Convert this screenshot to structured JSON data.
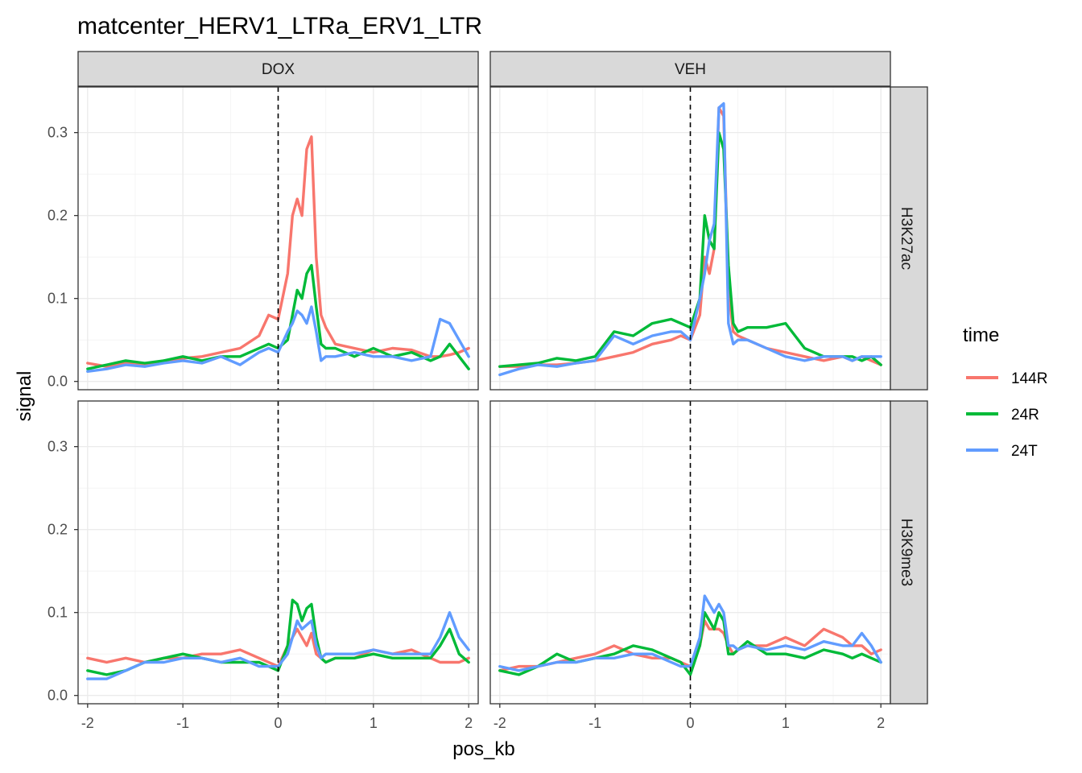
{
  "chart_data": {
    "type": "line",
    "title": "matcenter_HERV1_LTRa_ERV1_LTR",
    "xlabel": "pos_kb",
    "ylabel": "signal",
    "xlim": [
      -2.1,
      2.1
    ],
    "ylim": [
      -0.01,
      0.355
    ],
    "xticks": [
      "-2",
      "-1",
      "0",
      "1",
      "2"
    ],
    "yticks": [
      "0.0",
      "0.1",
      "0.2",
      "0.3"
    ],
    "vline_x": 0,
    "grid": true,
    "legend": {
      "title": "time",
      "placement": "right"
    },
    "columns": [
      "DOX",
      "VEH"
    ],
    "rows": [
      "H3K27ac",
      "H3K9me3"
    ],
    "colors": {
      "144R": "#F8766D",
      "24R": "#00BA38",
      "24T": "#619CFF"
    },
    "x": [
      -2.0,
      -1.8,
      -1.6,
      -1.4,
      -1.2,
      -1.0,
      -0.8,
      -0.6,
      -0.4,
      -0.2,
      -0.1,
      0.0,
      0.1,
      0.15,
      0.2,
      0.25,
      0.3,
      0.35,
      0.4,
      0.45,
      0.5,
      0.6,
      0.8,
      1.0,
      1.2,
      1.4,
      1.6,
      1.7,
      1.8,
      1.9,
      2.0
    ],
    "panels": [
      {
        "col": "DOX",
        "row": "H3K27ac",
        "series": [
          {
            "name": "144R",
            "values": [
              0.022,
              0.018,
              0.022,
              0.02,
              0.025,
              0.028,
              0.03,
              0.035,
              0.04,
              0.055,
              0.08,
              0.075,
              0.13,
              0.2,
              0.22,
              0.2,
              0.28,
              0.295,
              0.15,
              0.08,
              0.065,
              0.045,
              0.04,
              0.035,
              0.04,
              0.038,
              0.03,
              0.03,
              0.032,
              0.035,
              0.04
            ]
          },
          {
            "name": "24R",
            "values": [
              0.015,
              0.02,
              0.025,
              0.022,
              0.025,
              0.03,
              0.025,
              0.03,
              0.03,
              0.04,
              0.045,
              0.04,
              0.05,
              0.08,
              0.11,
              0.1,
              0.13,
              0.14,
              0.09,
              0.045,
              0.04,
              0.04,
              0.03,
              0.04,
              0.03,
              0.035,
              0.025,
              0.03,
              0.045,
              0.03,
              0.015
            ]
          },
          {
            "name": "24T",
            "values": [
              0.012,
              0.015,
              0.02,
              0.018,
              0.022,
              0.025,
              0.022,
              0.03,
              0.02,
              0.035,
              0.04,
              0.035,
              0.06,
              0.07,
              0.085,
              0.08,
              0.07,
              0.09,
              0.06,
              0.025,
              0.03,
              0.03,
              0.035,
              0.03,
              0.03,
              0.025,
              0.03,
              0.075,
              0.07,
              0.05,
              0.03
            ]
          }
        ]
      },
      {
        "col": "VEH",
        "row": "H3K27ac",
        "series": [
          {
            "name": "144R",
            "values": [
              0.018,
              0.018,
              0.02,
              0.02,
              0.022,
              0.025,
              0.03,
              0.035,
              0.045,
              0.05,
              0.055,
              0.05,
              0.08,
              0.15,
              0.13,
              0.16,
              0.33,
              0.32,
              0.11,
              0.06,
              0.055,
              0.05,
              0.04,
              0.035,
              0.03,
              0.025,
              0.03,
              0.025,
              0.03,
              0.025,
              0.02
            ]
          },
          {
            "name": "24R",
            "values": [
              0.018,
              0.02,
              0.022,
              0.028,
              0.025,
              0.03,
              0.06,
              0.055,
              0.07,
              0.075,
              0.07,
              0.065,
              0.1,
              0.2,
              0.17,
              0.16,
              0.3,
              0.28,
              0.14,
              0.07,
              0.06,
              0.065,
              0.065,
              0.07,
              0.04,
              0.03,
              0.03,
              0.03,
              0.025,
              0.03,
              0.02
            ]
          },
          {
            "name": "24T",
            "values": [
              0.008,
              0.015,
              0.02,
              0.018,
              0.022,
              0.025,
              0.055,
              0.045,
              0.055,
              0.06,
              0.06,
              0.05,
              0.1,
              0.13,
              0.17,
              0.19,
              0.33,
              0.335,
              0.07,
              0.045,
              0.05,
              0.05,
              0.04,
              0.03,
              0.025,
              0.03,
              0.03,
              0.025,
              0.03,
              0.03,
              0.03
            ]
          }
        ]
      },
      {
        "col": "DOX",
        "row": "H3K9me3",
        "series": [
          {
            "name": "144R",
            "values": [
              0.045,
              0.04,
              0.045,
              0.04,
              0.045,
              0.045,
              0.05,
              0.05,
              0.055,
              0.045,
              0.04,
              0.035,
              0.06,
              0.07,
              0.08,
              0.07,
              0.06,
              0.075,
              0.05,
              0.045,
              0.04,
              0.045,
              0.045,
              0.055,
              0.05,
              0.055,
              0.045,
              0.04,
              0.04,
              0.04,
              0.045
            ]
          },
          {
            "name": "24R",
            "values": [
              0.03,
              0.025,
              0.03,
              0.04,
              0.045,
              0.05,
              0.045,
              0.04,
              0.04,
              0.04,
              0.035,
              0.03,
              0.06,
              0.115,
              0.11,
              0.09,
              0.105,
              0.11,
              0.07,
              0.045,
              0.04,
              0.045,
              0.045,
              0.05,
              0.045,
              0.045,
              0.045,
              0.06,
              0.08,
              0.05,
              0.04
            ]
          },
          {
            "name": "24T",
            "values": [
              0.02,
              0.02,
              0.03,
              0.04,
              0.04,
              0.045,
              0.045,
              0.04,
              0.045,
              0.035,
              0.035,
              0.035,
              0.05,
              0.07,
              0.09,
              0.08,
              0.085,
              0.09,
              0.06,
              0.045,
              0.05,
              0.05,
              0.05,
              0.055,
              0.05,
              0.05,
              0.05,
              0.07,
              0.1,
              0.07,
              0.055
            ]
          }
        ]
      },
      {
        "col": "VEH",
        "row": "H3K9me3",
        "series": [
          {
            "name": "144R",
            "values": [
              0.03,
              0.035,
              0.035,
              0.04,
              0.045,
              0.05,
              0.06,
              0.05,
              0.045,
              0.045,
              0.04,
              0.035,
              0.06,
              0.09,
              0.08,
              0.08,
              0.08,
              0.075,
              0.06,
              0.05,
              0.055,
              0.06,
              0.06,
              0.07,
              0.06,
              0.08,
              0.07,
              0.06,
              0.06,
              0.05,
              0.055
            ]
          },
          {
            "name": "24R",
            "values": [
              0.03,
              0.025,
              0.035,
              0.05,
              0.04,
              0.045,
              0.05,
              0.06,
              0.055,
              0.045,
              0.04,
              0.025,
              0.06,
              0.1,
              0.09,
              0.08,
              0.1,
              0.09,
              0.05,
              0.05,
              0.055,
              0.065,
              0.05,
              0.05,
              0.045,
              0.055,
              0.05,
              0.045,
              0.05,
              0.045,
              0.04
            ]
          },
          {
            "name": "24T",
            "values": [
              0.035,
              0.03,
              0.035,
              0.04,
              0.04,
              0.045,
              0.045,
              0.05,
              0.05,
              0.04,
              0.035,
              0.035,
              0.07,
              0.12,
              0.11,
              0.1,
              0.11,
              0.1,
              0.06,
              0.06,
              0.055,
              0.06,
              0.055,
              0.06,
              0.055,
              0.065,
              0.06,
              0.06,
              0.075,
              0.06,
              0.04
            ]
          }
        ]
      }
    ]
  }
}
